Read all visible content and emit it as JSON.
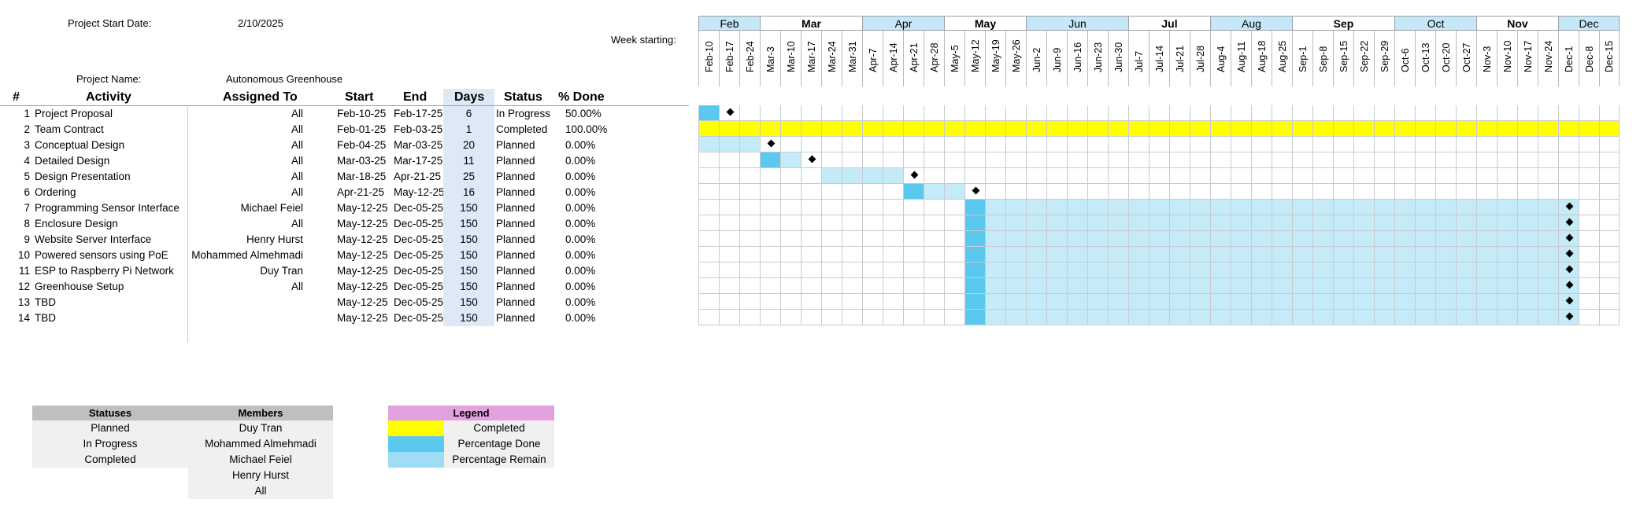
{
  "project": {
    "start_label": "Project Start Date:",
    "start_value": "2/10/2025",
    "name_label": "Project Name:",
    "name_value": "Autonomous Greenhouse",
    "week_starting_label": "Week starting:"
  },
  "columns": {
    "num": "#",
    "activity": "Activity",
    "assigned": "Assigned To",
    "start": "Start",
    "end": "End",
    "days": "Days",
    "status": "Status",
    "done": "% Done"
  },
  "months": [
    {
      "label": "Feb",
      "weeks": 3,
      "bold": false,
      "alt": true
    },
    {
      "label": "Mar",
      "weeks": 5,
      "bold": true,
      "alt": false
    },
    {
      "label": "Apr",
      "weeks": 4,
      "bold": false,
      "alt": true
    },
    {
      "label": "May",
      "weeks": 4,
      "bold": true,
      "alt": false
    },
    {
      "label": "Jun",
      "weeks": 5,
      "bold": false,
      "alt": true
    },
    {
      "label": "Jul",
      "weeks": 4,
      "bold": true,
      "alt": false
    },
    {
      "label": "Aug",
      "weeks": 4,
      "bold": false,
      "alt": true
    },
    {
      "label": "Sep",
      "weeks": 5,
      "bold": true,
      "alt": false
    },
    {
      "label": "Oct",
      "weeks": 4,
      "bold": false,
      "alt": true
    },
    {
      "label": "Nov",
      "weeks": 4,
      "bold": true,
      "alt": false
    },
    {
      "label": "Dec",
      "weeks": 3,
      "bold": false,
      "alt": true
    }
  ],
  "weeks": [
    "Feb-10",
    "Feb-17",
    "Feb-24",
    "Mar-3",
    "Mar-10",
    "Mar-17",
    "Mar-24",
    "Mar-31",
    "Apr-7",
    "Apr-14",
    "Apr-21",
    "Apr-28",
    "May-5",
    "May-12",
    "May-19",
    "May-26",
    "Jun-2",
    "Jun-9",
    "Jun-16",
    "Jun-23",
    "Jun-30",
    "Jul-7",
    "Jul-14",
    "Jul-21",
    "Jul-28",
    "Aug-4",
    "Aug-11",
    "Aug-18",
    "Aug-25",
    "Sep-1",
    "Sep-8",
    "Sep-15",
    "Sep-22",
    "Sep-29",
    "Oct-6",
    "Oct-13",
    "Oct-20",
    "Oct-27",
    "Nov-3",
    "Nov-10",
    "Nov-17",
    "Nov-24",
    "Dec-1",
    "Dec-8",
    "Dec-15"
  ],
  "tasks": [
    {
      "num": "1",
      "activity": "Project Proposal",
      "assigned": "All",
      "start": "Feb-10-25",
      "end": "Feb-17-25",
      "days": "6",
      "status": "In Progress",
      "done": "50.00%",
      "bar": {
        "kind": "progress",
        "done_from": 0,
        "done_to": 0,
        "remain_from": 1,
        "remain_to": 0,
        "milestone": 1
      }
    },
    {
      "num": "2",
      "activity": "Team Contract",
      "assigned": "All",
      "start": "Feb-01-25",
      "end": "Feb-03-25",
      "days": "1",
      "status": "Completed",
      "done": "100.00%",
      "bar": {
        "kind": "completed",
        "from": 0,
        "to": 44,
        "milestone": -1
      }
    },
    {
      "num": "3",
      "activity": "Conceptual Design",
      "assigned": "All",
      "start": "Feb-04-25",
      "end": "Mar-03-25",
      "days": "20",
      "status": "Planned",
      "done": "0.00%",
      "bar": {
        "kind": "progress",
        "done_from": -1,
        "done_to": -1,
        "remain_from": 0,
        "remain_to": 2,
        "milestone": 3
      }
    },
    {
      "num": "4",
      "activity": "Detailed Design",
      "assigned": "All",
      "start": "Mar-03-25",
      "end": "Mar-17-25",
      "days": "11",
      "status": "Planned",
      "done": "0.00%",
      "bar": {
        "kind": "progress",
        "done_from": 3,
        "done_to": 3,
        "remain_from": 4,
        "remain_to": 4,
        "milestone": 5
      }
    },
    {
      "num": "5",
      "activity": "Design Presentation",
      "assigned": "All",
      "start": "Mar-18-25",
      "end": "Apr-21-25",
      "days": "25",
      "status": "Planned",
      "done": "0.00%",
      "bar": {
        "kind": "progress",
        "done_from": -1,
        "done_to": -1,
        "remain_from": 6,
        "remain_to": 9,
        "milestone": 10
      }
    },
    {
      "num": "6",
      "activity": "Ordering",
      "assigned": "All",
      "start": "Apr-21-25",
      "end": "May-12-25",
      "days": "16",
      "status": "Planned",
      "done": "0.00%",
      "bar": {
        "kind": "progress",
        "done_from": 10,
        "done_to": 10,
        "remain_from": 11,
        "remain_to": 12,
        "milestone": 13
      }
    },
    {
      "num": "7",
      "activity": "Programming Sensor Interface",
      "assigned": "Michael Feiel",
      "start": "May-12-25",
      "end": "Dec-05-25",
      "days": "150",
      "status": "Planned",
      "done": "0.00%",
      "bar": {
        "kind": "progress",
        "done_from": 13,
        "done_to": 13,
        "remain_from": 14,
        "remain_to": 42,
        "milestone": 42
      }
    },
    {
      "num": "8",
      "activity": "Enclosure Design",
      "assigned": "All",
      "start": "May-12-25",
      "end": "Dec-05-25",
      "days": "150",
      "status": "Planned",
      "done": "0.00%",
      "bar": {
        "kind": "progress",
        "done_from": 13,
        "done_to": 13,
        "remain_from": 14,
        "remain_to": 42,
        "milestone": 42
      }
    },
    {
      "num": "9",
      "activity": "Website Server Interface",
      "assigned": "Henry Hurst",
      "start": "May-12-25",
      "end": "Dec-05-25",
      "days": "150",
      "status": "Planned",
      "done": "0.00%",
      "bar": {
        "kind": "progress",
        "done_from": 13,
        "done_to": 13,
        "remain_from": 14,
        "remain_to": 42,
        "milestone": 42
      }
    },
    {
      "num": "10",
      "activity": "Powered sensors using PoE",
      "assigned": "Mohammed Almehmadi",
      "start": "May-12-25",
      "end": "Dec-05-25",
      "days": "150",
      "status": "Planned",
      "done": "0.00%",
      "bar": {
        "kind": "progress",
        "done_from": 13,
        "done_to": 13,
        "remain_from": 14,
        "remain_to": 42,
        "milestone": 42
      }
    },
    {
      "num": "11",
      "activity": "ESP to Raspberry Pi Network",
      "assigned": "Duy Tran",
      "start": "May-12-25",
      "end": "Dec-05-25",
      "days": "150",
      "status": "Planned",
      "done": "0.00%",
      "bar": {
        "kind": "progress",
        "done_from": 13,
        "done_to": 13,
        "remain_from": 14,
        "remain_to": 42,
        "milestone": 42
      }
    },
    {
      "num": "12",
      "activity": "Greenhouse Setup",
      "assigned": "All",
      "start": "May-12-25",
      "end": "Dec-05-25",
      "days": "150",
      "status": "Planned",
      "done": "0.00%",
      "bar": {
        "kind": "progress",
        "done_from": 13,
        "done_to": 13,
        "remain_from": 14,
        "remain_to": 42,
        "milestone": 42
      }
    },
    {
      "num": "13",
      "activity": "TBD",
      "assigned": "",
      "start": "May-12-25",
      "end": "Dec-05-25",
      "days": "150",
      "status": "Planned",
      "done": "0.00%",
      "bar": {
        "kind": "progress",
        "done_from": 13,
        "done_to": 13,
        "remain_from": 14,
        "remain_to": 42,
        "milestone": 42
      }
    },
    {
      "num": "14",
      "activity": "TBD",
      "assigned": "",
      "start": "May-12-25",
      "end": "Dec-05-25",
      "days": "150",
      "status": "Planned",
      "done": "0.00%",
      "bar": {
        "kind": "progress",
        "done_from": 13,
        "done_to": 13,
        "remain_from": 14,
        "remain_to": 42,
        "milestone": 42
      }
    }
  ],
  "statuses": {
    "title": "Statuses",
    "items": [
      "Planned",
      "In Progress",
      "Completed"
    ]
  },
  "members": {
    "title": "Members",
    "items": [
      "Duy Tran",
      "Mohammed Almehmadi",
      "Michael Feiel",
      "Henry Hurst",
      "All"
    ]
  },
  "legend": {
    "title": "Legend",
    "items": [
      {
        "label": "Completed",
        "color": "#ffff00"
      },
      {
        "label": "Percentage Done",
        "color": "#5bc8f0"
      },
      {
        "label": "Percentage Remain",
        "color": "#9fdcf5"
      }
    ],
    "title_color": "#e3a1de"
  },
  "colors": {
    "month_alt": "#c5e7f7",
    "done": "#5bc8f0",
    "remain": "#c6ebf8",
    "completed": "#ffff00",
    "days_bg": "#dde9f6",
    "box_header": "#bfbfbf",
    "box_body": "#f0f0f0"
  }
}
